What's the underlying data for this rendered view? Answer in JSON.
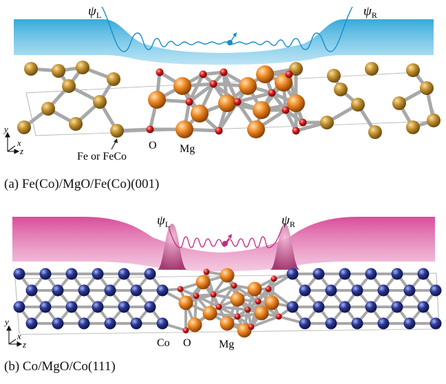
{
  "panels": [
    {
      "caption": "(a) Fe(Co)/MgO/Fe(Co)(001)",
      "psi_left": "ψ",
      "psi_left_sub": "L",
      "psi_right": "ψ",
      "psi_right_sub": "R",
      "label_electrode": "Fe or FeCo",
      "label_oxygen": "O",
      "label_magnesium": "Mg",
      "axis_y": "y",
      "axis_x": "x",
      "axis_z": "z",
      "wave_color": "#3ab0dc",
      "electrode_atom_color": "#b8862a",
      "mg_atom_color": "#e58a28",
      "o_atom_color": "#d8201e"
    },
    {
      "caption": "(b) Co/MgO/Co(111)",
      "psi_left": "ψ",
      "psi_left_sub": "L",
      "psi_right": "ψ",
      "psi_right_sub": "R",
      "label_electrode": "Co",
      "label_oxygen": "O",
      "label_magnesium": "Mg",
      "axis_y": "y",
      "axis_x": "x",
      "axis_z": "z",
      "wave_color": "#d8449a",
      "electrode_atom_color": "#2a3590",
      "mg_atom_color": "#e58a28",
      "o_atom_color": "#d8201e"
    }
  ]
}
